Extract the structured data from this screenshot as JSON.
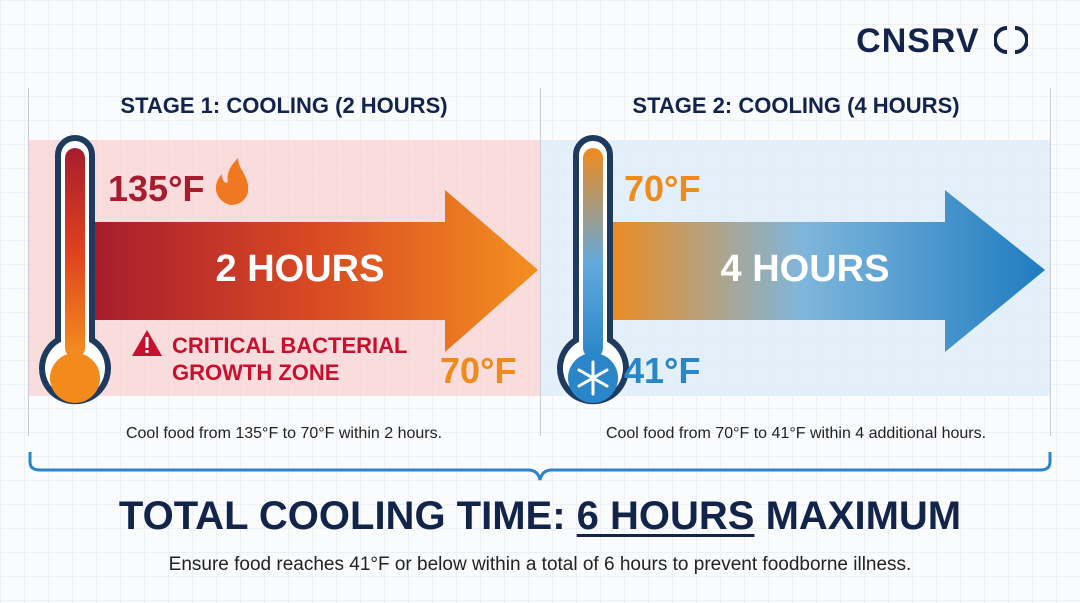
{
  "logo": {
    "text": "CNSRV"
  },
  "stage1": {
    "title": "STAGE 1: COOLING (2 HOURS)",
    "start_temp": "135°F",
    "end_temp": "70°F",
    "duration": "2 HOURS",
    "warning_line1": "CRITICAL BACTERIAL",
    "warning_line2": "GROWTH ZONE",
    "description": "Cool food from 135°F to 70°F within 2 hours.",
    "icon": "flame-icon"
  },
  "stage2": {
    "title": "STAGE 2: COOLING (4 HOURS)",
    "start_temp": "70°F",
    "end_temp": "41°F",
    "duration": "4 HOURS",
    "description": "Cool food from 70°F to 41°F within 4 additional hours.",
    "icon": "snowflake-icon"
  },
  "total": {
    "prefix": "TOTAL COOLING TIME: ",
    "highlight": "6 HOURS",
    "suffix": " MAXIMUM",
    "subtitle": "Ensure food reaches 41°F or below within a total of 6 hours to prevent foodborne illness."
  },
  "colors": {
    "navy": "#13244a",
    "red": "#b0202e",
    "orange": "#f08a1c",
    "blue": "#2a86c8",
    "pink_bg": "#f9dcdc",
    "blue_bg": "#e3eff8"
  }
}
